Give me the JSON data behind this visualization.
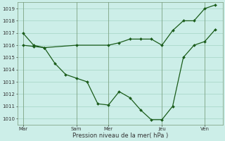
{
  "background_color": "#cceee8",
  "line_color": "#1a5c1a",
  "grid_color": "#99ccbb",
  "xlabel": "Pression niveau de la mer( hPa )",
  "ylim": [
    1009.5,
    1019.5
  ],
  "yticks": [
    1010,
    1011,
    1012,
    1013,
    1014,
    1015,
    1016,
    1017,
    1018,
    1019
  ],
  "day_labels": [
    "Mar",
    "Sam",
    "Mer",
    "Jeu",
    "Ven"
  ],
  "day_positions": [
    0,
    30,
    48,
    78,
    102
  ],
  "total_points": 120,
  "line1_x": [
    0,
    6,
    12,
    18,
    24,
    30,
    36,
    42,
    48,
    54,
    60,
    66,
    72,
    78,
    84,
    90,
    96,
    102,
    108
  ],
  "line1_y": [
    1017.0,
    1016.0,
    1015.8,
    1014.5,
    1013.6,
    1013.3,
    1013.0,
    1011.2,
    1011.1,
    1012.2,
    1011.7,
    1010.7,
    1009.9,
    1009.9,
    1011.0,
    1015.0,
    1016.0,
    1016.3,
    1017.3
  ],
  "line2_x": [
    0,
    6,
    12,
    30,
    48,
    54,
    60,
    66,
    72,
    78,
    84,
    90,
    96,
    102,
    108
  ],
  "line2_y": [
    1016.0,
    1015.9,
    1015.8,
    1016.0,
    1016.0,
    1016.2,
    1016.5,
    1016.5,
    1016.5,
    1016.0,
    1017.2,
    1018.0,
    1018.0,
    1019.0,
    1019.3
  ],
  "marker_size": 2.0,
  "linewidth": 0.9,
  "tick_fontsize": 5.0,
  "xlabel_fontsize": 6.0
}
